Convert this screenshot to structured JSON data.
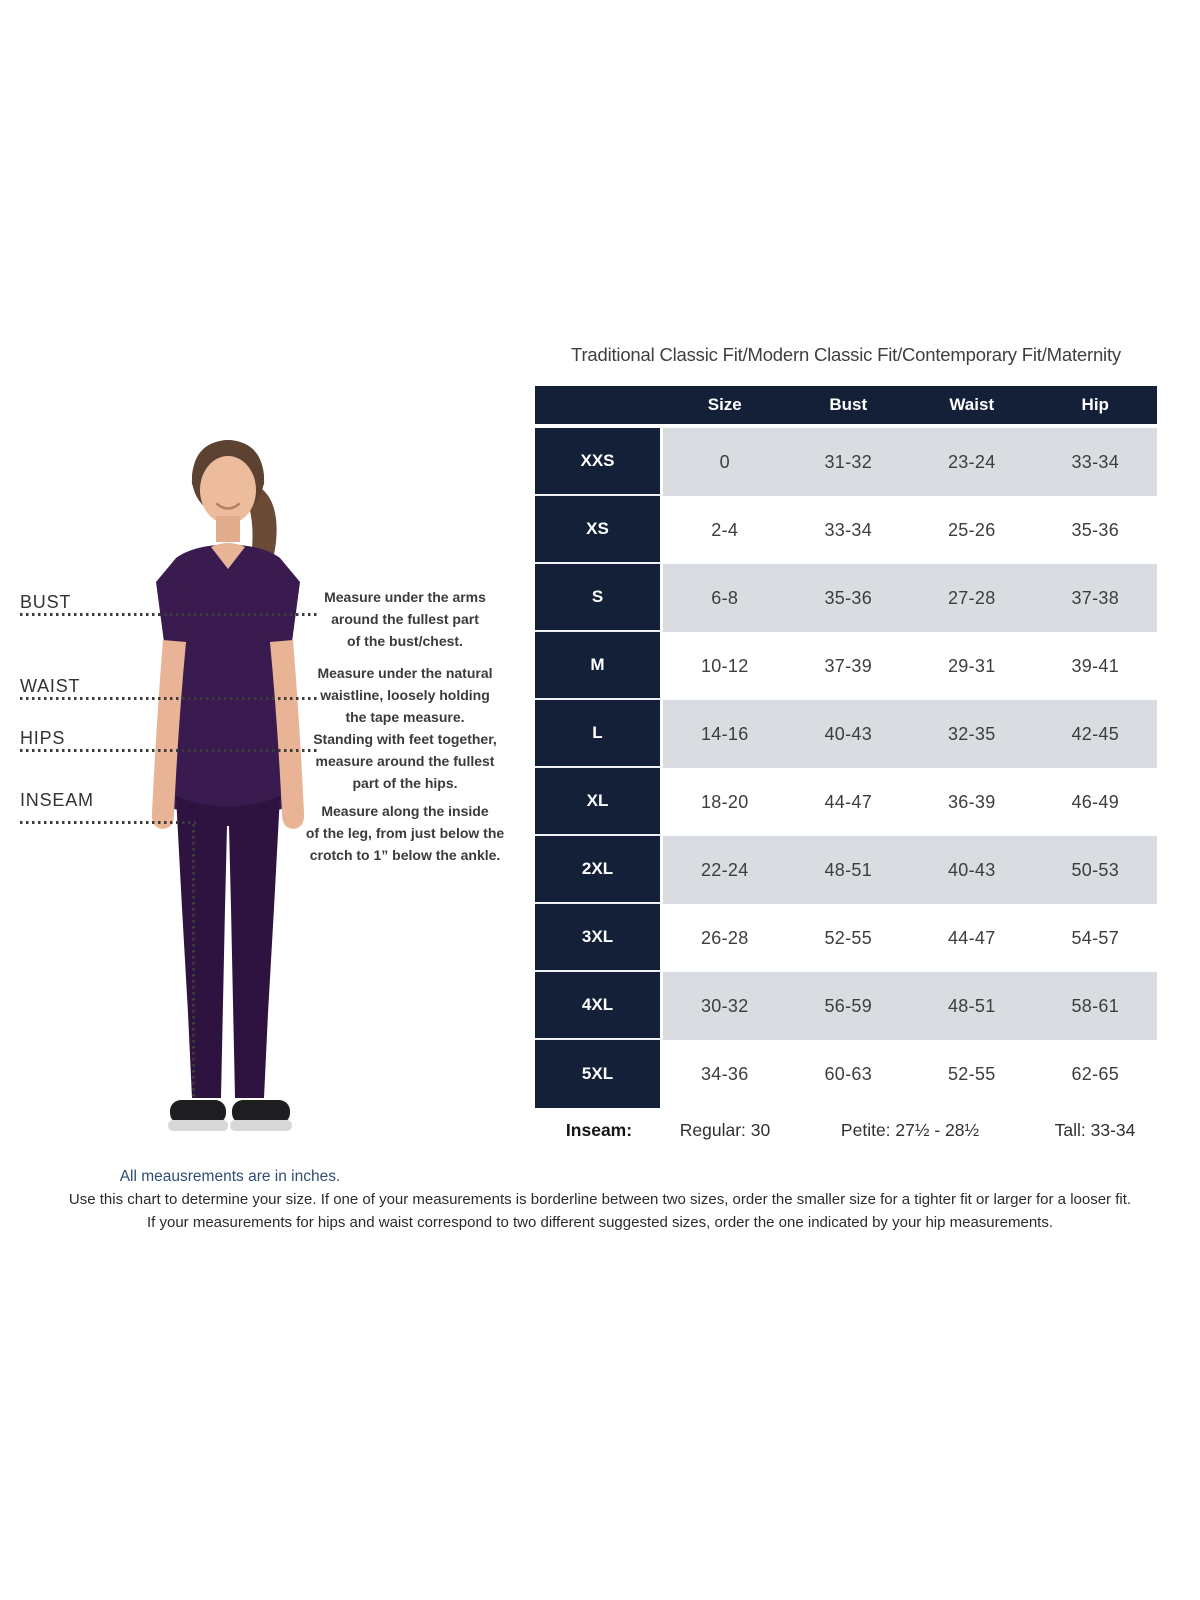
{
  "title": "Traditional Classic Fit/Modern Classic Fit/Contemporary Fit/Maternity",
  "measurements": {
    "items": [
      {
        "label": "BUST",
        "instruction_lines": [
          "Measure under the arms",
          "around the fullest part",
          "of the bust/chest."
        ]
      },
      {
        "label": "WAIST",
        "instruction_lines": [
          "Measure under the natural",
          "waistline, loosely holding",
          "the tape measure."
        ]
      },
      {
        "label": "HIPS",
        "instruction_lines": [
          "Standing with feet together,",
          "measure around the fullest",
          "part of the hips."
        ]
      },
      {
        "label": "INSEAM",
        "instruction_lines": [
          "Measure along the inside",
          "of the leg, from just below the",
          "crotch to 1” below the ankle."
        ]
      }
    ],
    "units_note": "All meausrements are in inches."
  },
  "table": {
    "columns": [
      "Size",
      "Bust",
      "Waist",
      "Hip"
    ],
    "rows": [
      {
        "size": "XXS",
        "values": [
          "0",
          "31-32",
          "23-24",
          "33-34"
        ]
      },
      {
        "size": "XS",
        "values": [
          "2-4",
          "33-34",
          "25-26",
          "35-36"
        ]
      },
      {
        "size": "S",
        "values": [
          "6-8",
          "35-36",
          "27-28",
          "37-38"
        ]
      },
      {
        "size": "M",
        "values": [
          "10-12",
          "37-39",
          "29-31",
          "39-41"
        ]
      },
      {
        "size": "L",
        "values": [
          "14-16",
          "40-43",
          "32-35",
          "42-45"
        ]
      },
      {
        "size": "XL",
        "values": [
          "18-20",
          "44-47",
          "36-39",
          "46-49"
        ]
      },
      {
        "size": "2XL",
        "values": [
          "22-24",
          "48-51",
          "40-43",
          "50-53"
        ]
      },
      {
        "size": "3XL",
        "values": [
          "26-28",
          "52-55",
          "44-47",
          "54-57"
        ]
      },
      {
        "size": "4XL",
        "values": [
          "30-32",
          "56-59",
          "48-51",
          "58-61"
        ]
      },
      {
        "size": "5XL",
        "values": [
          "34-36",
          "60-63",
          "52-55",
          "62-65"
        ]
      }
    ],
    "inseam": {
      "label": "Inseam:",
      "regular": "Regular: 30",
      "petite": "Petite: 27½ - 28½",
      "tall": "Tall: 33-34"
    }
  },
  "footer": {
    "line1": "Use this chart to determine your size. If one of your measurements is borderline between two sizes, order the smaller size for a tighter fit or larger for a looser fit.",
    "line2": "If your measurements for hips and waist correspond to two different suggested sizes, order the one indicated by your hip measurements."
  },
  "colors": {
    "navy": "#132038",
    "row_gray": "#d9dce1",
    "note_blue": "#2e4e74",
    "scrub_purple": "#3a1b4f",
    "pants_purple": "#2e1240"
  },
  "chart_data": {
    "type": "table",
    "title": "Traditional Classic Fit/Modern Classic Fit/Contemporary Fit/Maternity",
    "columns": [
      "Size",
      "Bust",
      "Waist",
      "Hip"
    ],
    "row_labels": [
      "XXS",
      "XS",
      "S",
      "M",
      "L",
      "XL",
      "2XL",
      "3XL",
      "4XL",
      "5XL"
    ],
    "rows": [
      [
        "0",
        "31-32",
        "23-24",
        "33-34"
      ],
      [
        "2-4",
        "33-34",
        "25-26",
        "35-36"
      ],
      [
        "6-8",
        "35-36",
        "27-28",
        "37-38"
      ],
      [
        "10-12",
        "37-39",
        "29-31",
        "39-41"
      ],
      [
        "14-16",
        "40-43",
        "32-35",
        "42-45"
      ],
      [
        "18-20",
        "44-47",
        "36-39",
        "46-49"
      ],
      [
        "22-24",
        "48-51",
        "40-43",
        "50-53"
      ],
      [
        "26-28",
        "52-55",
        "44-47",
        "54-57"
      ],
      [
        "30-32",
        "56-59",
        "48-51",
        "58-61"
      ],
      [
        "34-36",
        "60-63",
        "52-55",
        "62-65"
      ]
    ],
    "inseam_note": [
      "Inseam:",
      "Regular: 30",
      "Petite: 27½ - 28½",
      "Tall: 33-34"
    ],
    "units": "inches"
  }
}
